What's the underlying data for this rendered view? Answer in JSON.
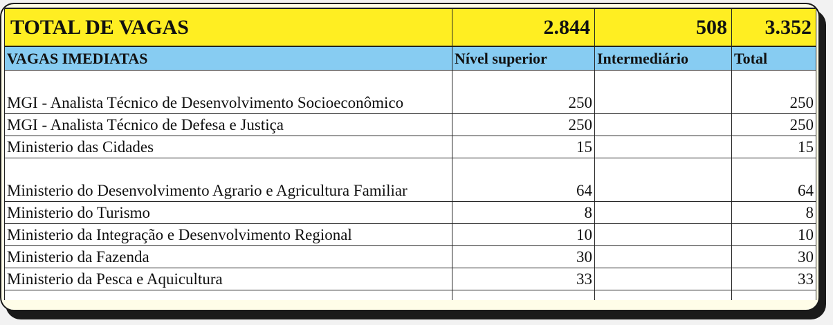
{
  "total": {
    "label": "TOTAL DE VAGAS",
    "superior": "2.844",
    "intermediario": "508",
    "total": "3.352"
  },
  "header": {
    "section": "VAGAS IMEDIATAS",
    "superior": "Nível superior",
    "intermediario": "Intermediário",
    "total": "Total"
  },
  "rows": [
    {
      "name": "MGI - Analista Técnico de Desenvolvimento Socioeconômico",
      "superior": "250",
      "intermediario": "",
      "total": "250"
    },
    {
      "name": "MGI - Analista Técnico de Defesa e Justiça",
      "superior": "250",
      "intermediario": "",
      "total": "250"
    },
    {
      "name": "Ministerio das Cidades",
      "superior": "15",
      "intermediario": "",
      "total": "15"
    },
    {
      "name": "Ministerio do Desenvolvimento Agrario e Agricultura Familiar",
      "superior": "64",
      "intermediario": "",
      "total": "64"
    },
    {
      "name": "Ministerio do Turismo",
      "superior": "8",
      "intermediario": "",
      "total": "8"
    },
    {
      "name": "Ministerio da Integração e Desenvolvimento Regional",
      "superior": "10",
      "intermediario": "",
      "total": "10"
    },
    {
      "name": "Ministerio da Fazenda",
      "superior": "30",
      "intermediario": "",
      "total": "30"
    },
    {
      "name": "Ministerio da Pesca e Aquicultura",
      "superior": "33",
      "intermediario": "",
      "total": "33"
    }
  ],
  "colors": {
    "total_band": "#ffee22",
    "header_band": "#87ccf2"
  }
}
